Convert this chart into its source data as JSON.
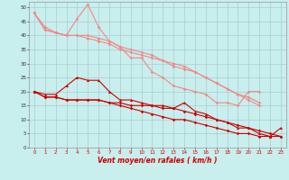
{
  "x": [
    0,
    1,
    2,
    3,
    4,
    5,
    6,
    7,
    8,
    9,
    10,
    11,
    12,
    13,
    14,
    15,
    16,
    17,
    18,
    19,
    20,
    21,
    22,
    23
  ],
  "line1": [
    48,
    43,
    41,
    40,
    46,
    51,
    43,
    38,
    36,
    32,
    32,
    27,
    25,
    22,
    21,
    20,
    19,
    16,
    16,
    15,
    20,
    20,
    null,
    null
  ],
  "line2": [
    48,
    42,
    41,
    40,
    40,
    40,
    39,
    38,
    36,
    35,
    34,
    33,
    31,
    30,
    29,
    27,
    25,
    23,
    21,
    19,
    18,
    16,
    null,
    null
  ],
  "line3": [
    48,
    42,
    41,
    40,
    40,
    39,
    38,
    37,
    35,
    34,
    33,
    32,
    31,
    29,
    28,
    27,
    25,
    23,
    21,
    19,
    17,
    15,
    null,
    null
  ],
  "line4": [
    20,
    19,
    19,
    22,
    25,
    24,
    24,
    20,
    17,
    17,
    16,
    15,
    15,
    14,
    16,
    13,
    12,
    10,
    9,
    7,
    7,
    5,
    4,
    7
  ],
  "line5": [
    20,
    18,
    18,
    17,
    17,
    17,
    17,
    16,
    16,
    15,
    15,
    15,
    14,
    14,
    13,
    12,
    11,
    10,
    9,
    8,
    7,
    6,
    5,
    4
  ],
  "line6": [
    20,
    18,
    18,
    17,
    17,
    17,
    17,
    16,
    15,
    14,
    13,
    12,
    11,
    10,
    10,
    9,
    8,
    7,
    6,
    5,
    5,
    4,
    4,
    4
  ],
  "background_color": "#c8eeed",
  "grid_color": "#aacccc",
  "line_light_color": "#f08888",
  "line_dark_color": "#cc0000",
  "xlabel": "Vent moyen/en rafales ( km/h )",
  "xlim": [
    -0.5,
    23.5
  ],
  "ylim": [
    0,
    52
  ],
  "yticks": [
    0,
    5,
    10,
    15,
    20,
    25,
    30,
    35,
    40,
    45,
    50
  ],
  "xticks": [
    0,
    1,
    2,
    3,
    4,
    5,
    6,
    7,
    8,
    9,
    10,
    11,
    12,
    13,
    14,
    15,
    16,
    17,
    18,
    19,
    20,
    21,
    22,
    23
  ]
}
